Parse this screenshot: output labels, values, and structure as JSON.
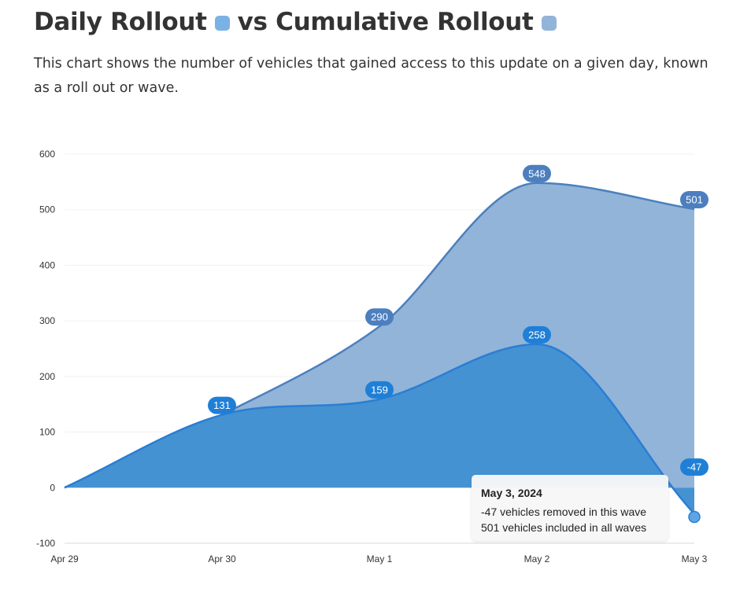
{
  "header": {
    "title_part1": "Daily Rollout",
    "title_part2": "vs Cumulative Rollout",
    "subtitle": "This chart shows the number of vehicles that gained access to this update on a given day, known as a roll out or wave."
  },
  "colors": {
    "daily_area": "#4592d3",
    "daily_line": "#2a7ed3",
    "cumulative_area": "#92b4d8",
    "cumulative_line": "#4b80bd",
    "daily_swatch": "#7bb2e6",
    "cumulative_swatch": "#92b4d8",
    "daily_label_bg": "#1f7fd6",
    "cumulative_label_bg": "#4d7fbf"
  },
  "chart_data": {
    "type": "area",
    "categories": [
      "Apr 29",
      "Apr 30",
      "May 1",
      "May 2",
      "May 3"
    ],
    "series": [
      {
        "name": "Cumulative Rollout",
        "values": [
          0,
          131,
          290,
          548,
          501
        ]
      },
      {
        "name": "Daily Rollout",
        "values": [
          0,
          131,
          159,
          258,
          -47
        ]
      }
    ],
    "data_labels": {
      "cumulative": [
        "",
        "",
        "290",
        "548",
        "501"
      ],
      "daily": [
        "",
        "131",
        "159",
        "258",
        "-47"
      ]
    },
    "yticks": [
      -100,
      0,
      100,
      200,
      300,
      400,
      500,
      600
    ],
    "ylim": [
      -100,
      600
    ],
    "grid": true
  },
  "tooltip": {
    "date": "May 3, 2024",
    "line1": "-47 vehicles removed in this wave",
    "line2": "501 vehicles included in all waves"
  }
}
